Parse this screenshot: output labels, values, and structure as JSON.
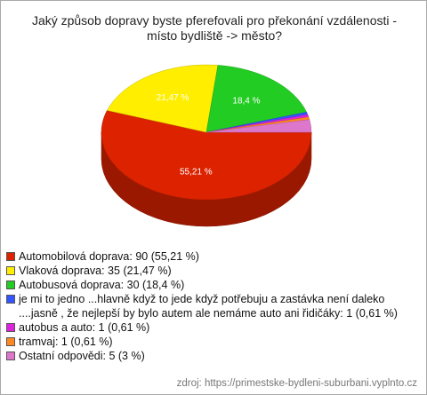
{
  "chart_data": {
    "type": "pie",
    "title": "Jaký způsob dopravy byste pferefovali pro překonání vzdálenosti - místo bydliště -> město?",
    "categories": [
      "Automobilová doprava: 90 (55,21 %)",
      "Vlaková doprava: 35 (21,47 %)",
      "Autobusová doprava: 30 (18,4 %)",
      "je mi to jedno ...hlavně když to jede když potřebuju a zastávka není daleko ....jasně , že nejlepší by bylo autem ale nemáme auto ani řidičáky: 1 (0,61 %)",
      "autobus a auto: 1 (0,61 %)",
      "tramvaj: 1 (0,61 %)",
      "Ostatní odpovědi: 5 (3 %)"
    ],
    "values": [
      55.21,
      21.47,
      18.4,
      0.61,
      0.61,
      0.61,
      3
    ],
    "value_labels": [
      "55,21 %",
      "21,47 %",
      "18,4 %",
      null,
      null,
      null,
      null
    ],
    "colors": [
      "#dd2200",
      "#ffee00",
      "#22cc22",
      "#3355ff",
      "#dd22dd",
      "#ff8822",
      "#dd77cc"
    ],
    "source": "zdroj: https://primestske-bydleni-suburbani.vyplnto.cz"
  }
}
